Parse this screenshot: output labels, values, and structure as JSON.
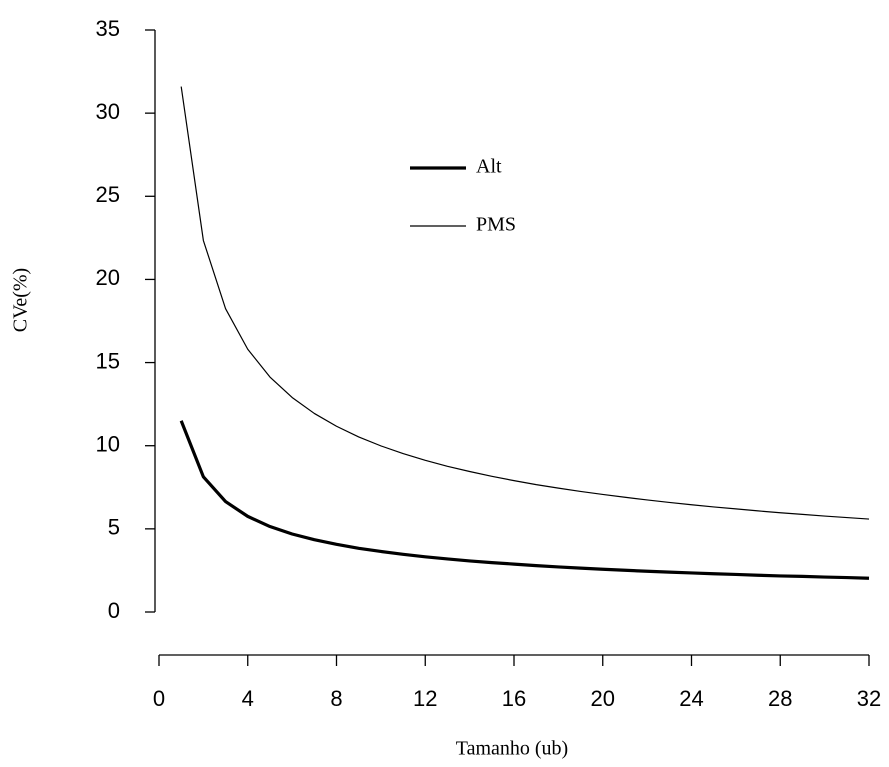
{
  "chart_data": {
    "type": "line",
    "x_label": "Tamanho (ub)",
    "y_label": "CVe(%)",
    "x": [
      1,
      2,
      3,
      4,
      5,
      6,
      7,
      8,
      9,
      10,
      11,
      12,
      13,
      14,
      15,
      16,
      17,
      18,
      19,
      20,
      21,
      22,
      23,
      24,
      25,
      26,
      27,
      28,
      29,
      30,
      31,
      32
    ],
    "series": [
      {
        "name": "Alt",
        "color": "#000000",
        "line_width": 3.2,
        "values": [
          11.5,
          8.13,
          6.64,
          5.75,
          5.14,
          4.69,
          4.35,
          4.07,
          3.83,
          3.64,
          3.47,
          3.32,
          3.19,
          3.07,
          2.97,
          2.88,
          2.79,
          2.71,
          2.64,
          2.57,
          2.51,
          2.45,
          2.4,
          2.35,
          2.3,
          2.26,
          2.21,
          2.17,
          2.14,
          2.1,
          2.07,
          2.03
        ]
      },
      {
        "name": "PMS",
        "color": "#000000",
        "line_width": 1.2,
        "values": [
          31.6,
          22.34,
          18.24,
          15.8,
          14.13,
          12.9,
          11.94,
          11.17,
          10.53,
          9.99,
          9.53,
          9.12,
          8.76,
          8.45,
          8.16,
          7.9,
          7.66,
          7.45,
          7.25,
          7.07,
          6.9,
          6.74,
          6.59,
          6.45,
          6.32,
          6.2,
          6.08,
          5.97,
          5.87,
          5.77,
          5.68,
          5.59
        ]
      }
    ],
    "xlim": [
      0,
      32
    ],
    "xticks": [
      0,
      4,
      8,
      12,
      16,
      20,
      24,
      28,
      32
    ],
    "ylim": [
      0,
      35
    ],
    "yticks": [
      0,
      5,
      10,
      15,
      20,
      25,
      30,
      35
    ],
    "grid": false
  }
}
